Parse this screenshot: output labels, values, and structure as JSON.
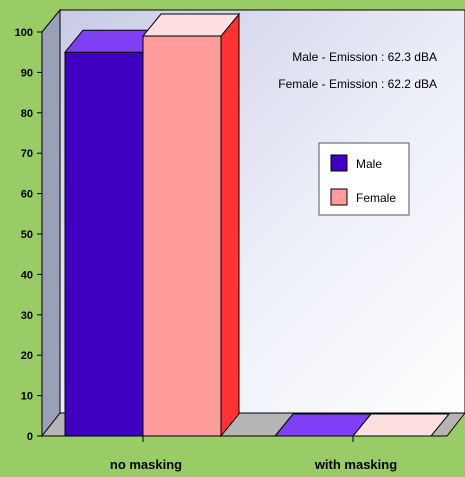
{
  "colors": {
    "background": "#99cc66",
    "male_front": "#3f00c0",
    "male_top": "#7f3ff5",
    "female_front": "#ff9c9c",
    "female_top": "#ffe0e0",
    "female_side": "#ff3333"
  },
  "annotations": {
    "male": "Male - Emission : 62.3 dBA",
    "female": "Female - Emission : 62.2 dBA"
  },
  "chart_data": {
    "type": "bar",
    "title": "",
    "xlabel": "",
    "ylabel": "",
    "categories": [
      "no masking",
      "with masking"
    ],
    "series": [
      {
        "name": "Male",
        "values": [
          95,
          0
        ]
      },
      {
        "name": "Female",
        "values": [
          99,
          0
        ]
      }
    ],
    "ylim": [
      0,
      100
    ],
    "yticks": [
      "0",
      "10",
      "20",
      "30",
      "40",
      "50",
      "60",
      "70",
      "80",
      "90",
      "100"
    ],
    "grid": false,
    "legend": "right",
    "style": "3d"
  }
}
